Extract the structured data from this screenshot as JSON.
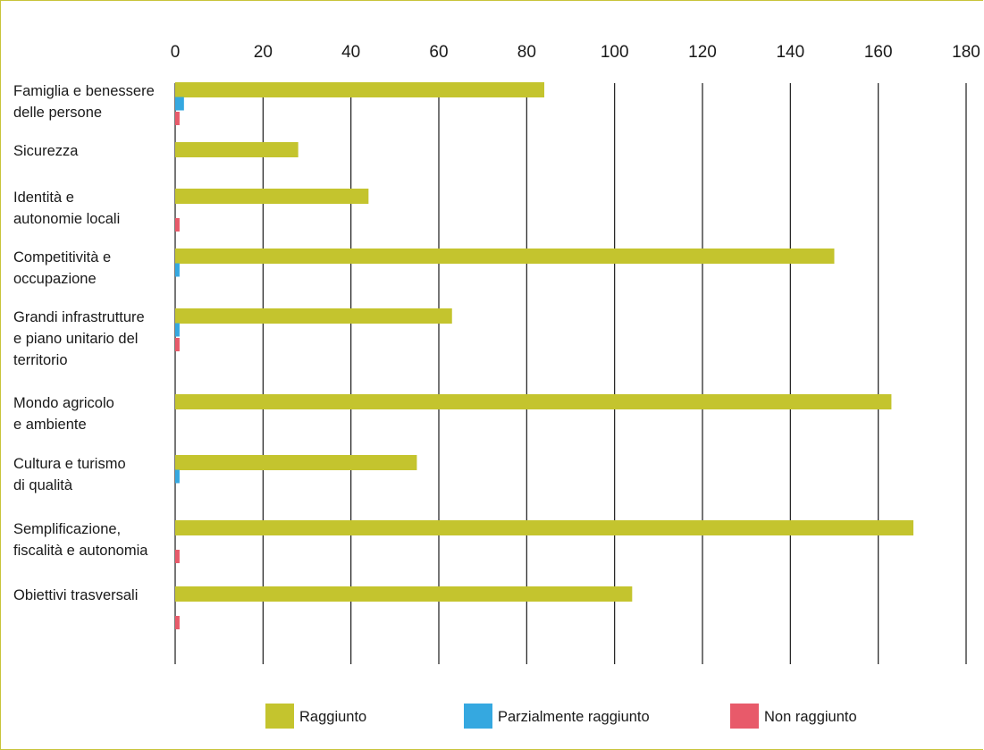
{
  "colors": {
    "raggiunto": "#c4c42e",
    "parzialmente": "#35a8e0",
    "non_raggiunto": "#e85a6a",
    "grid": "#1a1a1a",
    "frame": "#c8c43a"
  },
  "chart_data": {
    "type": "bar",
    "orientation": "horizontal",
    "xlim": [
      0,
      180
    ],
    "ticks": [
      0,
      20,
      40,
      60,
      80,
      100,
      120,
      140,
      160,
      180
    ],
    "tick_position": "top",
    "grid": true,
    "legend_placement": "bottom",
    "categories": [
      [
        "Famiglia e benessere",
        "delle persone"
      ],
      [
        "Sicurezza"
      ],
      [
        "Identità e",
        "autonomie locali"
      ],
      [
        "Competitività e",
        "occupazione"
      ],
      [
        "Grandi infrastrutture",
        "e piano unitario del",
        "territorio"
      ],
      [
        "Mondo agricolo",
        "e ambiente"
      ],
      [
        "Cultura e turismo",
        "di qualità"
      ],
      [
        "Semplificazione,",
        "fiscalità e autonomia"
      ],
      [
        "Obiettivi trasversali"
      ]
    ],
    "series": [
      {
        "name": "Raggiunto",
        "color_key": "raggiunto",
        "values": [
          84,
          28,
          44,
          150,
          63,
          163,
          55,
          168,
          104
        ]
      },
      {
        "name": "Parzialmente raggiunto",
        "color_key": "parzialmente",
        "values": [
          2,
          0,
          0,
          1,
          1,
          0,
          1,
          0,
          0
        ]
      },
      {
        "name": "Non raggiunto",
        "color_key": "non_raggiunto",
        "values": [
          1,
          0,
          1,
          0,
          1,
          0,
          0,
          1,
          1
        ]
      }
    ]
  }
}
